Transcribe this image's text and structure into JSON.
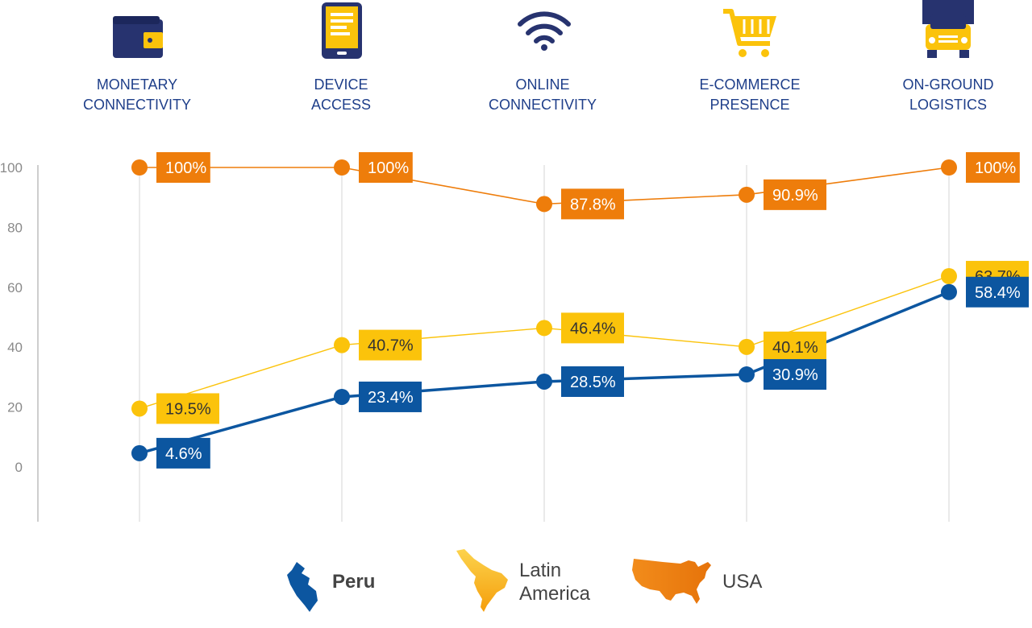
{
  "chart_data": {
    "type": "line",
    "categories": [
      [
        "MONETARY",
        "CONNECTIVITY"
      ],
      [
        "DEVICE",
        "ACCESS"
      ],
      [
        "ONLINE",
        "CONNECTIVITY"
      ],
      [
        "E-COMMERCE",
        "PRESENCE"
      ],
      [
        "ON-GROUND",
        "LOGISTICS"
      ]
    ],
    "category_icons": [
      "wallet-icon",
      "tablet-icon",
      "wifi-icon",
      "shopping-cart-icon",
      "truck-icon"
    ],
    "ylim": [
      0,
      100
    ],
    "yticks": [
      "100",
      "80",
      "60",
      "40",
      "20",
      "0"
    ],
    "ytick_values": [
      100,
      80,
      60,
      40,
      20,
      0
    ],
    "series": [
      {
        "name": "USA",
        "color": "#ee7d0b",
        "values": [
          100,
          100,
          87.8,
          90.9,
          100
        ],
        "labels": [
          "100%",
          "100%",
          "87.8%",
          "90.9%",
          "100%"
        ]
      },
      {
        "name": "Latin America",
        "color": "#fbc30b",
        "values": [
          19.5,
          40.7,
          46.4,
          40.1,
          63.7
        ],
        "labels": [
          "19.5%",
          "40.7%",
          "46.4%",
          "40.1%",
          "63.7%"
        ]
      },
      {
        "name": "Peru",
        "color": "#0c56a0",
        "values": [
          4.6,
          23.4,
          28.5,
          30.9,
          58.4
        ],
        "labels": [
          "4.6%",
          "23.4%",
          "28.5%",
          "30.9%",
          "58.4%"
        ]
      }
    ],
    "legend": [
      {
        "name": [
          "Peru"
        ],
        "icon": "peru-map-icon",
        "color": "#0c56a0"
      },
      {
        "name": [
          "Latin",
          "America"
        ],
        "icon": "latin-america-map-icon",
        "color": "#fbc30b"
      },
      {
        "name": [
          "USA"
        ],
        "icon": "usa-map-icon",
        "color": "#ee7d0b"
      }
    ],
    "legend_position": "bottom",
    "grid": "vertical"
  }
}
